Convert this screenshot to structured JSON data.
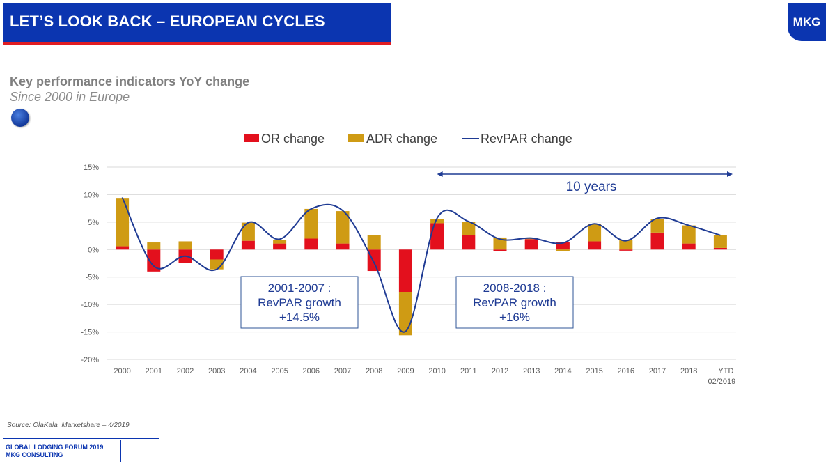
{
  "header": {
    "title": "LET’S LOOK BACK – EUROPEAN CYCLES",
    "logo_text": "MKG"
  },
  "kpi": {
    "title": "Key performance indicators YoY change",
    "subtitle": "Since 2000 in Europe",
    "flag_icon": "eu-flag-icon"
  },
  "colors": {
    "or": "#e3101d",
    "adr": "#cf9b14",
    "revpar": "#1f3b94",
    "accent": "#0b35b0",
    "annotation": "#1f3b94"
  },
  "chart_data": {
    "type": "bar",
    "stacked": true,
    "categories": [
      "2000",
      "2001",
      "2002",
      "2003",
      "2004",
      "2005",
      "2006",
      "2007",
      "2008",
      "2009",
      "2010",
      "2011",
      "2012",
      "2013",
      "2014",
      "2015",
      "2016",
      "2017",
      "2018",
      "YTD 02/2019"
    ],
    "series": [
      {
        "name": "OR change",
        "kind": "bar",
        "values": [
          0.6,
          -4.0,
          -2.5,
          -1.8,
          1.6,
          1.1,
          2.0,
          1.1,
          -3.9,
          -7.7,
          4.8,
          2.6,
          -0.3,
          1.9,
          1.4,
          1.5,
          -0.2,
          3.1,
          1.1,
          0.3
        ]
      },
      {
        "name": "ADR change",
        "kind": "bar",
        "values": [
          8.8,
          1.3,
          1.5,
          -1.8,
          3.3,
          0.7,
          5.4,
          5.9,
          2.6,
          -7.9,
          0.8,
          2.4,
          2.2,
          0.2,
          -0.3,
          3.2,
          1.8,
          2.5,
          3.3,
          2.3
        ]
      },
      {
        "name": "RevPAR change",
        "kind": "line",
        "values": [
          9.5,
          -3.0,
          -1.2,
          -3.6,
          4.9,
          1.9,
          7.4,
          7.1,
          -2.4,
          -14.9,
          5.7,
          5.1,
          1.9,
          2.1,
          1.2,
          4.7,
          1.6,
          5.7,
          4.4,
          2.6
        ]
      }
    ],
    "ylim": [
      -20,
      15
    ],
    "yticks": [
      15,
      10,
      5,
      0,
      -5,
      -10,
      -15,
      -20
    ],
    "ytick_labels": [
      "15%",
      "10%",
      "5%",
      "0%",
      "-5%",
      "-10%",
      "-15%",
      "-20%"
    ],
    "grid": true,
    "legend": "top-center",
    "annotations": {
      "arrow_label": "10 years",
      "box1": [
        "2001-2007 :",
        "RevPAR growth",
        "+14.5%"
      ],
      "box2": [
        "2008-2018 :",
        "RevPAR growth",
        "+16%"
      ]
    }
  },
  "footer": {
    "source": "Source: OlaKala_Marketshare – 4/2019",
    "line1": "GLOBAL LODGING FORUM 2019",
    "line2": "MKG CONSULTING"
  }
}
